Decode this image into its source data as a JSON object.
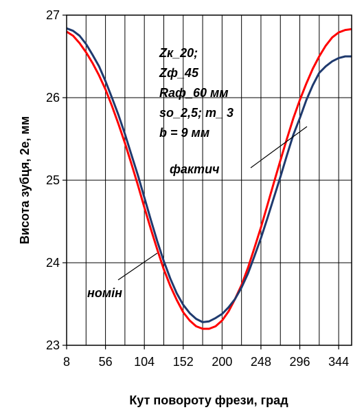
{
  "chart_data": {
    "type": "line",
    "xlabel": "Кут повороту фрези, град",
    "ylabel": "Висота зубця, 2е, мм",
    "xlim": [
      8,
      360
    ],
    "ylim": [
      23,
      27
    ],
    "xticks": [
      8,
      56,
      104,
      152,
      200,
      248,
      296,
      344
    ],
    "yticks": [
      23,
      24,
      25,
      26,
      27
    ],
    "grid": true,
    "series": [
      {
        "name": "номін",
        "color": "#ff0000",
        "x": [
          8,
          16,
          24,
          32,
          40,
          48,
          56,
          64,
          72,
          80,
          88,
          96,
          104,
          112,
          120,
          128,
          136,
          144,
          152,
          160,
          168,
          176,
          184,
          192,
          200,
          208,
          216,
          224,
          232,
          240,
          248,
          256,
          264,
          272,
          280,
          288,
          296,
          304,
          312,
          320,
          328,
          336,
          344,
          352,
          360
        ],
        "y": [
          26.8,
          26.75,
          26.66,
          26.55,
          26.42,
          26.27,
          26.1,
          25.9,
          25.68,
          25.45,
          25.2,
          24.94,
          24.67,
          24.41,
          24.16,
          23.92,
          23.72,
          23.55,
          23.4,
          23.3,
          23.23,
          23.2,
          23.2,
          23.23,
          23.3,
          23.41,
          23.56,
          23.73,
          23.94,
          24.18,
          24.43,
          24.7,
          24.97,
          25.24,
          25.5,
          25.75,
          25.97,
          26.17,
          26.35,
          26.5,
          26.63,
          26.73,
          26.79,
          26.82,
          26.83
        ]
      },
      {
        "name": "фактич",
        "color": "#1f3a6e",
        "x": [
          8,
          16,
          24,
          32,
          40,
          48,
          56,
          64,
          72,
          80,
          88,
          96,
          104,
          112,
          120,
          128,
          136,
          144,
          152,
          160,
          168,
          176,
          184,
          192,
          200,
          208,
          216,
          224,
          232,
          240,
          248,
          256,
          264,
          272,
          280,
          288,
          296,
          304,
          312,
          320,
          328,
          336,
          344,
          352,
          360
        ],
        "y": [
          26.84,
          26.81,
          26.75,
          26.65,
          26.52,
          26.38,
          26.2,
          26.0,
          25.79,
          25.56,
          25.31,
          25.06,
          24.79,
          24.52,
          24.26,
          24.02,
          23.81,
          23.63,
          23.49,
          23.39,
          23.32,
          23.28,
          23.29,
          23.33,
          23.38,
          23.46,
          23.56,
          23.7,
          23.87,
          24.08,
          24.3,
          24.54,
          24.79,
          25.04,
          25.3,
          25.55,
          25.75,
          25.97,
          26.15,
          26.3,
          26.38,
          26.44,
          26.48,
          26.5,
          26.5
        ]
      }
    ],
    "annotations": {
      "params": [
        "Zк_20;",
        "Zф_45",
        "Rаф_60 мм",
        "so_2,5; m_ 3",
        "b = 9 мм"
      ],
      "label_nomin": "номін",
      "label_fakt": "фактич"
    }
  }
}
